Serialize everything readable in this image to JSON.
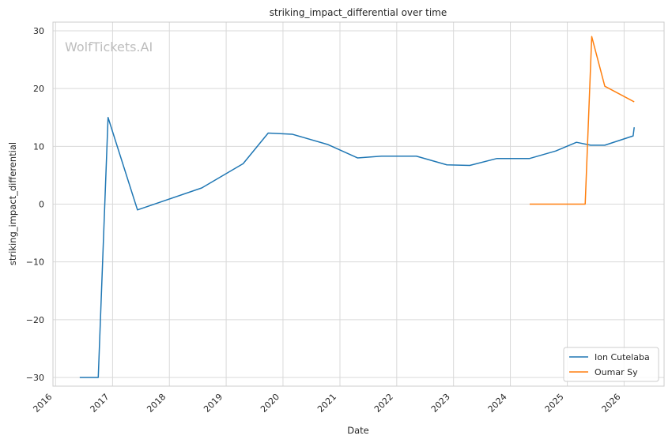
{
  "watermark": "WolfTickets.AI",
  "chart_data": {
    "type": "line",
    "title": "striking_impact_differential over time",
    "xlabel": "Date",
    "ylabel": "striking_impact_differential",
    "xlim": [
      "2015-12-15",
      "2026-09-15"
    ],
    "ylim": [
      -31.5,
      31.5
    ],
    "x_ticks": [
      "2016",
      "2017",
      "2018",
      "2019",
      "2020",
      "2021",
      "2022",
      "2023",
      "2024",
      "2025",
      "2026"
    ],
    "y_ticks": [
      30,
      20,
      10,
      0,
      -10,
      -20,
      -30
    ],
    "y_tick_labels": [
      "30",
      "20",
      "10",
      "0",
      "−10",
      "−20",
      "−30"
    ],
    "grid": true,
    "legend_position": "bottom-right",
    "series": [
      {
        "name": "Ion Cutelaba",
        "color": "#1f77b4",
        "points": [
          {
            "x": "2016-06-04",
            "y": -30
          },
          {
            "x": "2016-10-01",
            "y": -30
          },
          {
            "x": "2016-12-03",
            "y": 15
          },
          {
            "x": "2017-06-10",
            "y": -1
          },
          {
            "x": "2018-07-28",
            "y": 2.8
          },
          {
            "x": "2019-04-20",
            "y": 7
          },
          {
            "x": "2019-09-28",
            "y": 12.3
          },
          {
            "x": "2020-02-29",
            "y": 12.1
          },
          {
            "x": "2020-10-17",
            "y": 10.3
          },
          {
            "x": "2021-04-24",
            "y": 8
          },
          {
            "x": "2021-09-25",
            "y": 8.3
          },
          {
            "x": "2022-05-07",
            "y": 8.3
          },
          {
            "x": "2022-11-19",
            "y": 6.8
          },
          {
            "x": "2023-04-15",
            "y": 6.7
          },
          {
            "x": "2023-10-07",
            "y": 7.9
          },
          {
            "x": "2024-05-04",
            "y": 7.9
          },
          {
            "x": "2024-10-19",
            "y": 9.2
          },
          {
            "x": "2025-03-01",
            "y": 10.7
          },
          {
            "x": "2025-05-31",
            "y": 10.2
          },
          {
            "x": "2025-08-30",
            "y": 10.2
          },
          {
            "x": "2026-02-28",
            "y": 11.8
          },
          {
            "x": "2026-03-07",
            "y": 13.3
          }
        ]
      },
      {
        "name": "Oumar Sy",
        "color": "#ff7f0e",
        "points": [
          {
            "x": "2024-05-04",
            "y": 0
          },
          {
            "x": "2025-04-26",
            "y": 0
          },
          {
            "x": "2025-06-07",
            "y": 29
          },
          {
            "x": "2025-08-30",
            "y": 20.4
          },
          {
            "x": "2026-03-07",
            "y": 17.7
          }
        ]
      }
    ]
  }
}
